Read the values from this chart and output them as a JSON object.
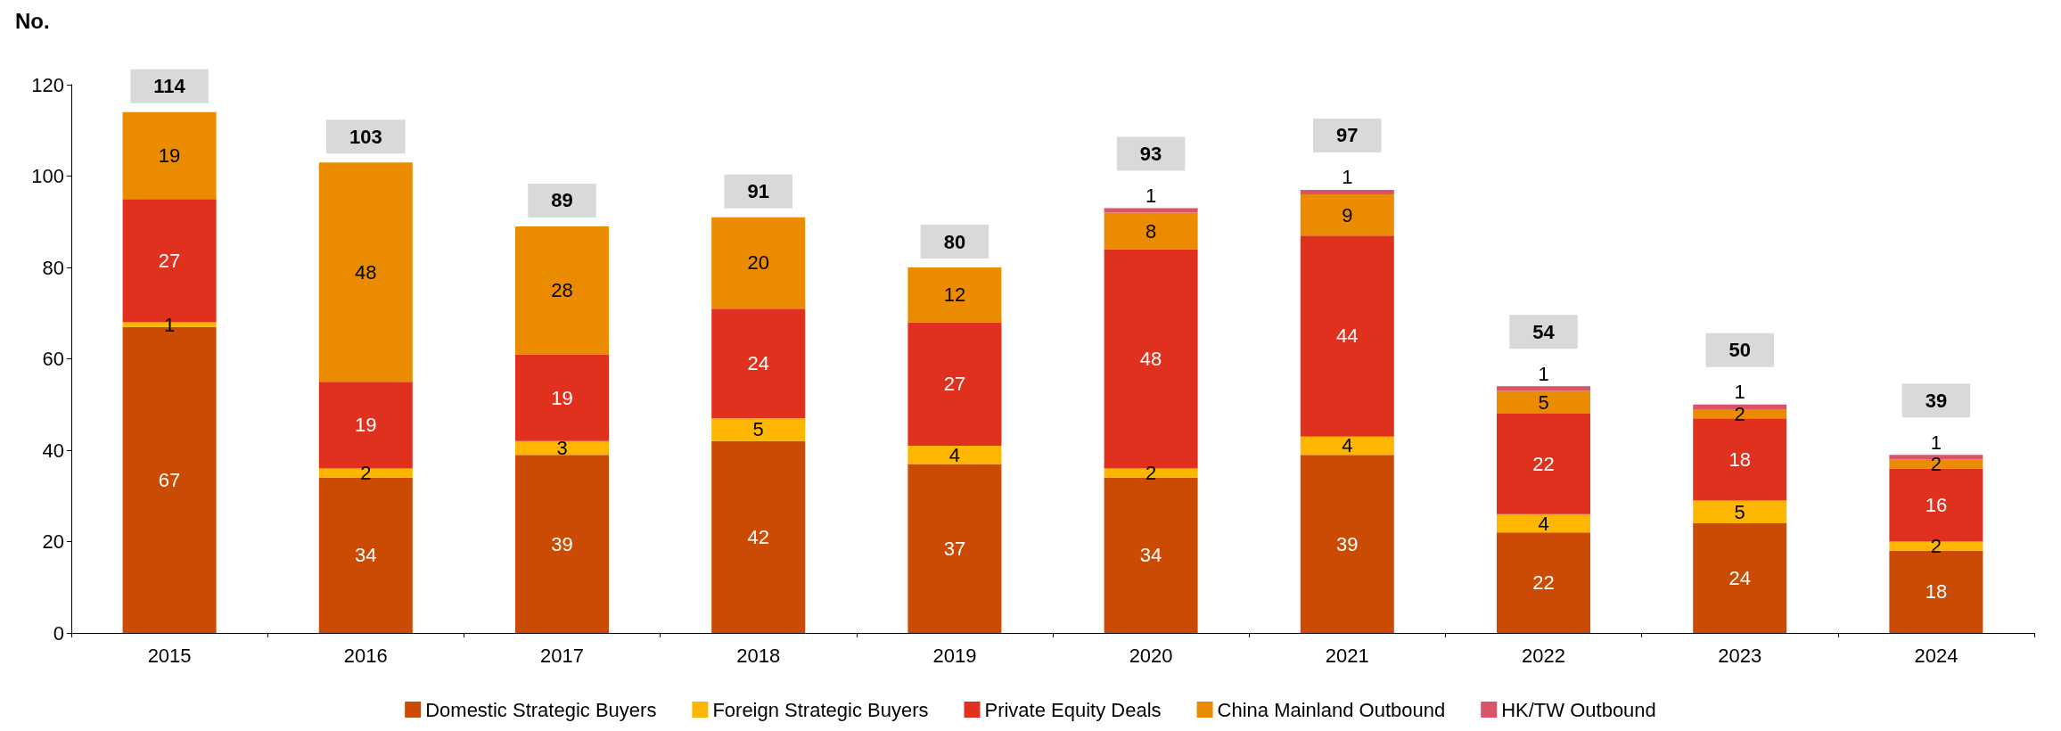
{
  "chart_data": {
    "type": "bar",
    "stacked": true,
    "ylabel": "No.",
    "categories": [
      "2015",
      "2016",
      "2017",
      "2018",
      "2019",
      "2020",
      "2021",
      "2022",
      "2023",
      "2024"
    ],
    "series": [
      {
        "name": "Domestic Strategic Buyers",
        "color": "#cb4b04",
        "values": [
          67,
          34,
          39,
          42,
          37,
          34,
          39,
          22,
          24,
          18
        ]
      },
      {
        "name": "Foreign Strategic Buyers",
        "color": "#ffb600",
        "values": [
          1,
          2,
          3,
          5,
          4,
          2,
          4,
          4,
          5,
          2
        ]
      },
      {
        "name": "Private Equity Deals",
        "color": "#e0301e",
        "values": [
          27,
          19,
          19,
          24,
          27,
          48,
          44,
          22,
          18,
          16
        ]
      },
      {
        "name": "China Mainland Outbound",
        "color": "#eb8c00",
        "values": [
          19,
          48,
          28,
          20,
          12,
          8,
          9,
          5,
          2,
          2
        ]
      },
      {
        "name": "HK/TW Outbound",
        "color": "#db536a",
        "values": [
          null,
          null,
          null,
          null,
          null,
          1,
          1,
          1,
          1,
          1
        ]
      }
    ],
    "totals": [
      "114",
      "103",
      "89",
      "91",
      "80",
      "93",
      "97",
      "54",
      "50",
      "39"
    ],
    "ylim": [
      0,
      120
    ],
    "yticks": [
      0,
      20,
      40,
      60,
      80,
      100,
      120
    ],
    "grid": false,
    "legend": "bottom",
    "data_labels": true
  }
}
